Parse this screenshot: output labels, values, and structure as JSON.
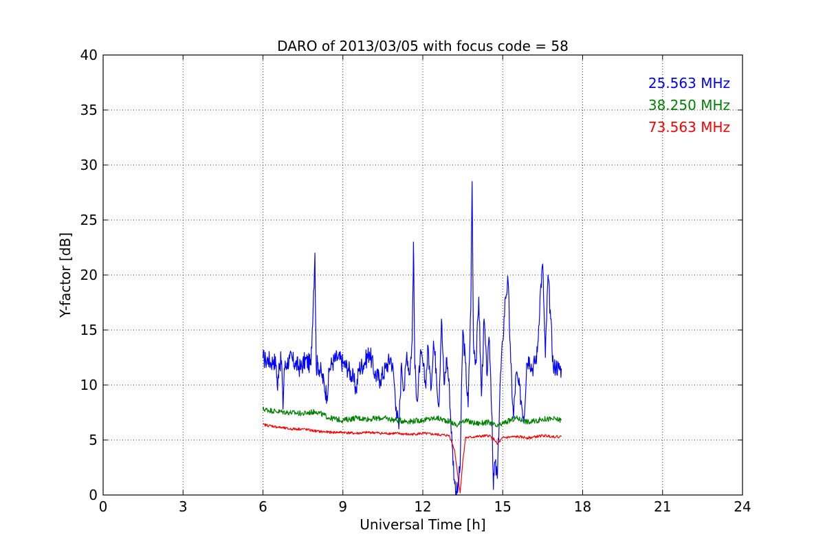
{
  "chart_data": {
    "type": "line",
    "title": "DARO of 2013/03/05 with focus code = 58",
    "xlabel": "Universal Time [h]",
    "ylabel": "Y-factor [dB]",
    "xlim": [
      0,
      24
    ],
    "ylim": [
      0,
      40
    ],
    "xticks": [
      0,
      3,
      6,
      9,
      12,
      15,
      18,
      21,
      24
    ],
    "yticks": [
      0,
      5,
      10,
      15,
      20,
      25,
      30,
      35,
      40
    ],
    "grid": true,
    "legend_placement": "top-right",
    "series": [
      {
        "name": "25.563 MHz",
        "color": "#0000ff",
        "x": [
          6.0,
          6.1,
          6.2,
          6.3,
          6.4,
          6.5,
          6.55,
          6.6,
          6.7,
          6.75,
          6.8,
          6.9,
          7.0,
          7.2,
          7.4,
          7.6,
          7.8,
          7.95,
          8.0,
          8.05,
          8.2,
          8.4,
          8.5,
          8.6,
          8.8,
          9.0,
          9.2,
          9.4,
          9.5,
          9.6,
          9.8,
          10.0,
          10.2,
          10.4,
          10.6,
          10.8,
          10.9,
          11.0,
          11.1,
          11.2,
          11.3,
          11.4,
          11.5,
          11.6,
          11.65,
          11.7,
          11.8,
          11.9,
          12.0,
          12.1,
          12.2,
          12.3,
          12.4,
          12.5,
          12.6,
          12.7,
          12.8,
          12.9,
          13.0,
          13.1,
          13.2,
          13.3,
          13.4,
          13.5,
          13.6,
          13.7,
          13.8,
          13.85,
          13.9,
          14.0,
          14.1,
          14.2,
          14.3,
          14.4,
          14.5,
          14.6,
          14.65,
          14.7,
          14.8,
          14.9,
          15.0,
          15.1,
          15.2,
          15.3,
          15.4,
          15.5,
          15.6,
          15.7,
          15.8,
          15.9,
          16.0,
          16.1,
          16.2,
          16.3,
          16.4,
          16.5,
          16.6,
          16.7,
          16.8,
          16.9,
          17.0,
          17.1,
          17.2
        ],
        "y": [
          12.5,
          12.2,
          12.4,
          12.0,
          12.3,
          11.8,
          9.5,
          12.0,
          12.2,
          7.8,
          11.5,
          12.0,
          12.4,
          12.0,
          11.5,
          12.3,
          11.8,
          22.0,
          11.5,
          12.0,
          11.0,
          9.0,
          11.5,
          12.0,
          12.5,
          12.0,
          11.5,
          10.5,
          9.5,
          11.5,
          12.0,
          13.0,
          11.0,
          10.5,
          11.5,
          12.5,
          11.0,
          8.0,
          6.0,
          12.0,
          9.5,
          13.0,
          11.0,
          14.0,
          23.0,
          11.5,
          8.5,
          12.5,
          12.0,
          10.0,
          13.5,
          9.5,
          14.0,
          11.5,
          8.0,
          16.0,
          10.0,
          12.5,
          9.5,
          4.5,
          1.0,
          0.2,
          2.5,
          15.0,
          12.0,
          8.0,
          17.0,
          28.5,
          14.0,
          12.0,
          18.0,
          9.0,
          16.0,
          11.0,
          14.0,
          7.0,
          0.5,
          3.0,
          1.5,
          10.0,
          14.0,
          18.0,
          19.5,
          12.0,
          7.0,
          11.0,
          10.0,
          8.5,
          7.0,
          12.0,
          12.5,
          11.5,
          12.0,
          13.0,
          18.0,
          21.0,
          12.5,
          20.0,
          16.0,
          11.5,
          11.8,
          11.5,
          11.5
        ]
      },
      {
        "name": "38.250 MHz",
        "color": "#008000",
        "x": [
          6.0,
          6.5,
          7.0,
          7.5,
          8.0,
          8.5,
          9.0,
          9.5,
          10.0,
          10.5,
          11.0,
          11.5,
          12.0,
          12.5,
          13.0,
          13.3,
          13.5,
          14.0,
          14.5,
          14.8,
          15.0,
          15.5,
          16.0,
          16.5,
          17.0,
          17.2
        ],
        "y": [
          7.8,
          7.6,
          7.5,
          7.4,
          7.6,
          7.0,
          6.8,
          7.0,
          6.9,
          7.0,
          6.8,
          6.7,
          6.8,
          7.0,
          6.7,
          6.3,
          6.8,
          6.5,
          6.6,
          6.2,
          6.5,
          7.0,
          6.6,
          6.9,
          6.9,
          6.8
        ]
      },
      {
        "name": "73.563 MHz",
        "color": "#ff0000",
        "x": [
          6.0,
          6.5,
          7.0,
          7.5,
          8.0,
          8.5,
          9.0,
          9.5,
          10.0,
          10.5,
          11.0,
          11.5,
          12.0,
          12.5,
          13.0,
          13.2,
          13.3,
          13.4,
          13.5,
          13.6,
          14.0,
          14.5,
          14.7,
          14.8,
          15.0,
          15.5,
          16.0,
          16.5,
          17.0,
          17.2
        ],
        "y": [
          6.4,
          6.2,
          6.0,
          6.0,
          5.8,
          5.7,
          5.7,
          5.6,
          5.7,
          5.6,
          5.6,
          5.5,
          5.6,
          5.5,
          5.4,
          4.0,
          2.0,
          0.2,
          3.0,
          5.2,
          5.3,
          5.4,
          5.0,
          4.6,
          5.2,
          5.3,
          5.2,
          5.4,
          5.3,
          5.3
        ]
      }
    ]
  }
}
